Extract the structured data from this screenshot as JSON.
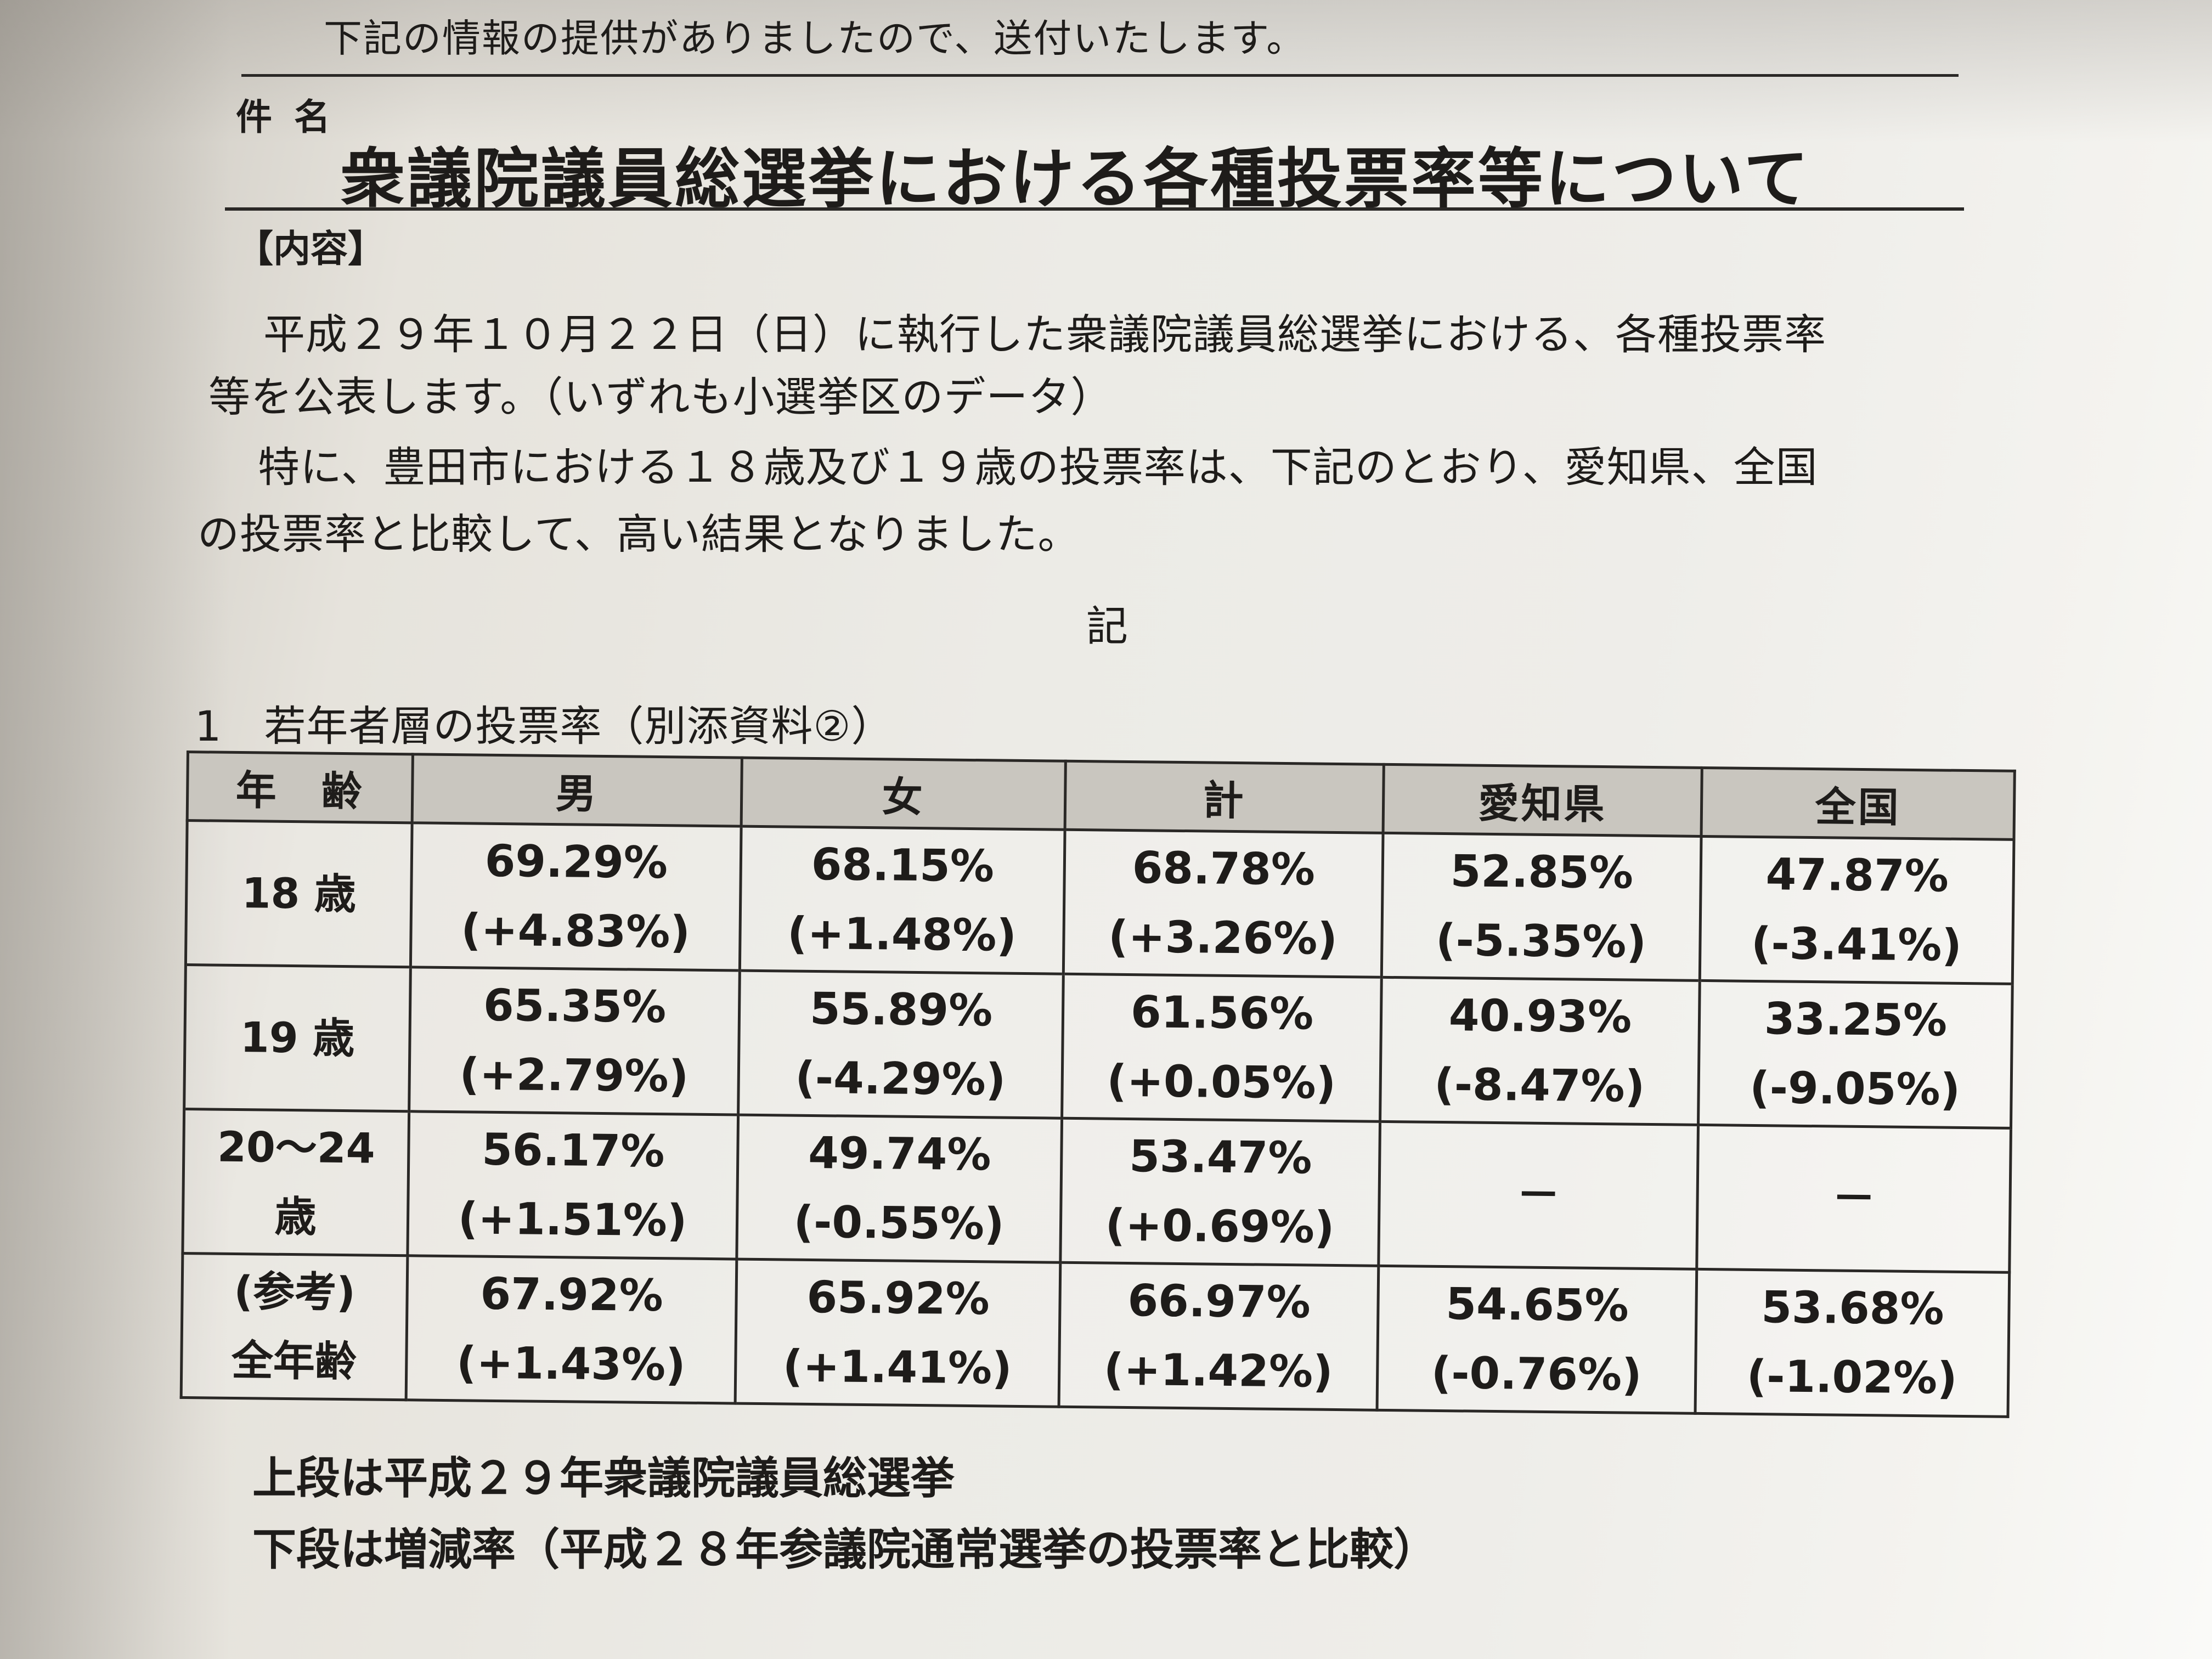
{
  "header": {
    "notice": "下記の情報の提供がありましたので、送付いたします。",
    "subject_label": "件名",
    "subject_title": "衆議院議員総選挙における各種投票率等について"
  },
  "content": {
    "heading": "【内容】",
    "paragraph1_line1": "平成２９年１０月２２日（日）に執行した衆議院議員総選挙における、各種投票率",
    "paragraph1_line2": "等を公表します。（いずれも小選挙区のデータ）",
    "paragraph2_line1": "特に、豊田市における１８歳及び１９歳の投票率は、下記のとおり、愛知県、全国",
    "paragraph2_line2": "の投票率と比較して、高い結果となりました。",
    "ki": "記"
  },
  "section1": {
    "title": "1　若年者層の投票率（別添資料②）",
    "table": {
      "headers": [
        "年　齢",
        "男",
        "女",
        "計",
        "愛知県",
        "全国"
      ],
      "rows": [
        {
          "age_line1": "18 歳",
          "age_line2": "",
          "cells": [
            {
              "value": "69.29%",
              "change": "(+4.83%)"
            },
            {
              "value": "68.15%",
              "change": "(+1.48%)"
            },
            {
              "value": "68.78%",
              "change": "(+3.26%)"
            },
            {
              "value": "52.85%",
              "change": "(-5.35%)"
            },
            {
              "value": "47.87%",
              "change": "(-3.41%)"
            }
          ]
        },
        {
          "age_line1": "19 歳",
          "age_line2": "",
          "cells": [
            {
              "value": "65.35%",
              "change": "(+2.79%)"
            },
            {
              "value": "55.89%",
              "change": "(-4.29%)"
            },
            {
              "value": "61.56%",
              "change": "(+0.05%)"
            },
            {
              "value": "40.93%",
              "change": "(-8.47%)"
            },
            {
              "value": "33.25%",
              "change": "(-9.05%)"
            }
          ]
        },
        {
          "age_line1": "20～24",
          "age_line2": "歳",
          "cells": [
            {
              "value": "56.17%",
              "change": "(+1.51%)"
            },
            {
              "value": "49.74%",
              "change": "(-0.55%)"
            },
            {
              "value": "53.47%",
              "change": "(+0.69%)"
            },
            {
              "value": "－",
              "change": ""
            },
            {
              "value": "－",
              "change": ""
            }
          ]
        },
        {
          "age_line1": "(参考)",
          "age_line2": "全年齢",
          "cells": [
            {
              "value": "67.92%",
              "change": "(+1.43%)"
            },
            {
              "value": "65.92%",
              "change": "(+1.41%)"
            },
            {
              "value": "66.97%",
              "change": "(+1.42%)"
            },
            {
              "value": "54.65%",
              "change": "(-0.76%)"
            },
            {
              "value": "53.68%",
              "change": "(-1.02%)"
            }
          ]
        }
      ]
    },
    "note_upper": "上段は平成２９年衆議院議員総選挙",
    "note_lower": "下段は増減率（平成２８年参議院通常選挙の投票率と比較）"
  }
}
